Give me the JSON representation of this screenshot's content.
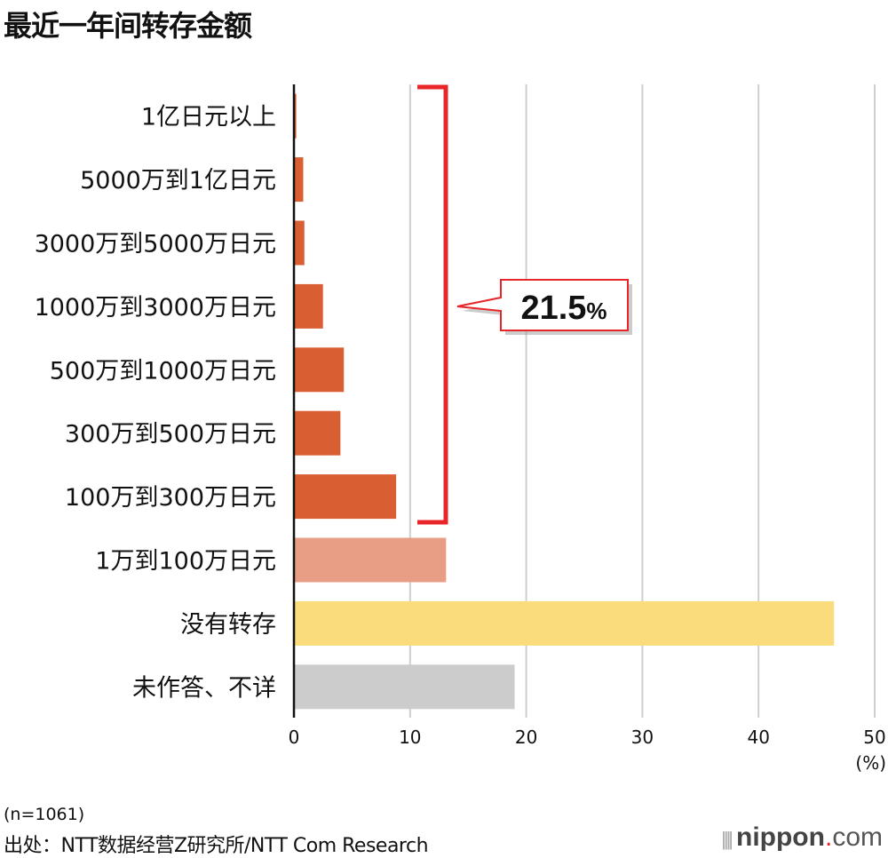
{
  "chart_data": {
    "type": "bar",
    "orientation": "horizontal",
    "title": "最近一年间转存金额",
    "categories": [
      "1亿日元以上",
      "5000万到1亿日元",
      "3000万到5000万日元",
      "1000万到3000万日元",
      "500万到1000万日元",
      "300万到500万日元",
      "100万到300万日元",
      "1万到100万日元",
      "没有转存",
      "未作答、不详"
    ],
    "values": [
      0.2,
      0.8,
      0.9,
      2.5,
      4.3,
      4.0,
      8.8,
      13.1,
      46.5,
      19.0
    ],
    "colors": [
      "#d95f33",
      "#d95f33",
      "#d95f33",
      "#d95f33",
      "#d95f33",
      "#d95f33",
      "#d95f33",
      "#e89e84",
      "#fbdc7c",
      "#cccccc"
    ],
    "xlim": [
      0,
      50
    ],
    "xticks": [
      "0",
      "10",
      "20",
      "30",
      "40",
      "50"
    ],
    "xunit": "(%)",
    "grid": true,
    "annotation": {
      "label": "21.5",
      "unit": "%",
      "bracket_color": "#e8262a",
      "covers": [
        "1亿日元以上",
        "5000万到1亿日元",
        "3000万到5000万日元",
        "1000万到3000万日元",
        "500万到1000万日元",
        "300万到500万日元",
        "100万到300万日元"
      ]
    }
  },
  "footer": {
    "n": "(n=1061)",
    "source": "出处：NTT数据经营Z研究所/NTT Com Research",
    "logo_main": "nippon",
    "logo_dot": ".",
    "logo_suffix": "com"
  }
}
